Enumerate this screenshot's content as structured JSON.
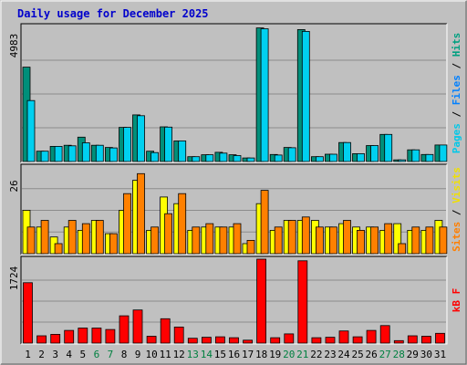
{
  "chart_data": {
    "type": "bar",
    "title": "Daily usage for December 2025",
    "categories": [
      "1",
      "2",
      "3",
      "4",
      "5",
      "6",
      "7",
      "8",
      "9",
      "10",
      "11",
      "12",
      "13",
      "14",
      "15",
      "16",
      "17",
      "18",
      "19",
      "20",
      "21",
      "22",
      "23",
      "24",
      "25",
      "26",
      "27",
      "28",
      "29",
      "30",
      "31"
    ],
    "weekend_days": [
      "6",
      "7",
      "13",
      "14",
      "20",
      "21",
      "27",
      "28"
    ],
    "panels": [
      {
        "name": "hits-files-pages",
        "max_label": "4983",
        "ylim": [
          0,
          4983
        ],
        "legend": [
          {
            "text": "Pages",
            "color": "#00c8e8"
          },
          {
            "text": " / ",
            "color": "#000000"
          },
          {
            "text": "Files",
            "color": "#0080ff"
          },
          {
            "text": " / ",
            "color": "#000000"
          },
          {
            "text": "Hits",
            "color": "#00a080"
          }
        ],
        "series": [
          {
            "name": "Hits",
            "color": "#008f7a",
            "values": [
              3480,
              380,
              560,
              600,
              900,
              600,
              520,
              1260,
              1720,
              380,
              1280,
              760,
              180,
              250,
              340,
              250,
              130,
              4930,
              260,
              520,
              4870,
              180,
              270,
              700,
              290,
              590,
              1000,
              60,
              430,
              260,
              610
            ]
          },
          {
            "name": "Pages",
            "color": "#00d0f0",
            "values": [
              2250,
              380,
              560,
              580,
              690,
              600,
              500,
              1260,
              1690,
              330,
              1270,
              760,
              180,
              250,
              310,
              220,
              130,
              4900,
              240,
              510,
              4800,
              180,
              270,
              700,
              290,
              590,
              1000,
              60,
              430,
              260,
              610
            ]
          }
        ]
      },
      {
        "name": "visits-sites",
        "max_label": "26",
        "ylim": [
          0,
          26
        ],
        "legend": [
          {
            "text": "Sites",
            "color": "#ff7f00"
          },
          {
            "text": " / ",
            "color": "#000000"
          },
          {
            "text": "Visits",
            "color": "#f0e000"
          }
        ],
        "series": [
          {
            "name": "Visits",
            "color": "#ffff00",
            "values": [
              13,
              8,
              5,
              8,
              7,
              10,
              6,
              13,
              22,
              7,
              17,
              15,
              7,
              8,
              8,
              8,
              3,
              15,
              7,
              10,
              10,
              10,
              8,
              9,
              8,
              8,
              7,
              9,
              7,
              7,
              10
            ]
          },
          {
            "name": "Sites",
            "color": "#ff8000",
            "values": [
              8,
              10,
              3,
              10,
              9,
              10,
              6,
              18,
              24,
              8,
              12,
              18,
              8,
              9,
              8,
              9,
              4,
              19,
              8,
              10,
              11,
              8,
              8,
              10,
              7,
              8,
              9,
              3,
              8,
              8,
              8
            ]
          }
        ]
      },
      {
        "name": "kbytes",
        "max_label": "1724",
        "ylim": [
          0,
          1724
        ],
        "legend": [
          {
            "text": "kB F",
            "color": "#ff0000"
          }
        ],
        "series": [
          {
            "name": "kB F",
            "color": "#ff0000",
            "values": [
              1240,
              150,
              180,
              260,
              310,
              310,
              280,
              560,
              680,
              140,
              500,
              330,
              100,
              120,
              130,
              110,
              60,
              1724,
              110,
              190,
              1690,
              110,
              120,
              250,
              130,
              260,
              360,
              50,
              150,
              140,
              200
            ]
          }
        ]
      }
    ]
  }
}
